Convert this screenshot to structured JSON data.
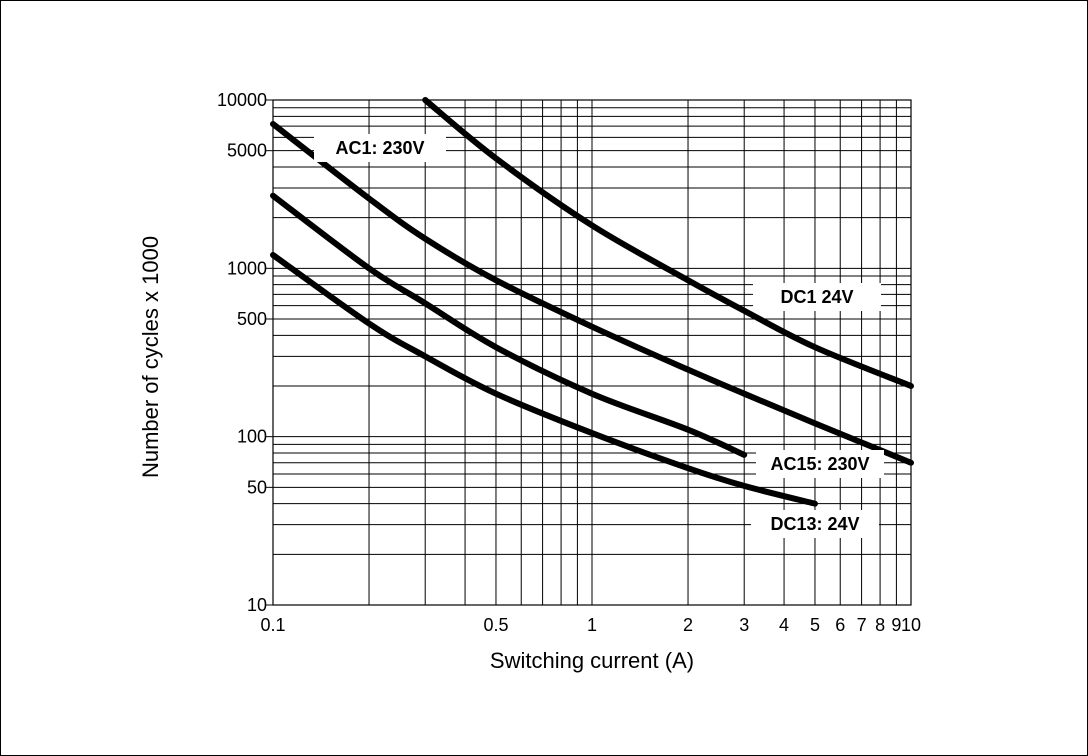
{
  "chart_data": {
    "type": "line",
    "title": "",
    "xlabel": "Switching current (A)",
    "ylabel": "Number of cycles x 1000",
    "x_scale": "log",
    "y_scale": "log",
    "xlim": [
      0.1,
      10
    ],
    "ylim": [
      10,
      10000
    ],
    "grid": true,
    "x_tick_labels": [
      {
        "value": 0.1,
        "label": "0.1"
      },
      {
        "value": 0.5,
        "label": "0.5"
      },
      {
        "value": 1,
        "label": "1"
      },
      {
        "value": 2,
        "label": "2"
      },
      {
        "value": 3,
        "label": "3"
      },
      {
        "value": 4,
        "label": "4"
      },
      {
        "value": 5,
        "label": "5"
      },
      {
        "value": 6,
        "label": "6"
      },
      {
        "value": 7,
        "label": "7"
      },
      {
        "value": 8,
        "label": "8"
      },
      {
        "value": 9,
        "label": "9"
      },
      {
        "value": 10,
        "label": "10"
      }
    ],
    "y_tick_labels": [
      {
        "value": 10,
        "label": "10"
      },
      {
        "value": 50,
        "label": "50"
      },
      {
        "value": 100,
        "label": "100"
      },
      {
        "value": 500,
        "label": "500"
      },
      {
        "value": 1000,
        "label": "1000"
      },
      {
        "value": 5000,
        "label": "5000"
      },
      {
        "value": 10000,
        "label": "10000"
      }
    ],
    "series": [
      {
        "name": "DC1 24V",
        "points": [
          [
            0.3,
            10000
          ],
          [
            0.5,
            4500
          ],
          [
            1,
            1800
          ],
          [
            2,
            850
          ],
          [
            3,
            560
          ],
          [
            5,
            340
          ],
          [
            10,
            200
          ]
        ]
      },
      {
        "name": "AC1: 230V",
        "points": [
          [
            0.1,
            7200
          ],
          [
            0.2,
            2600
          ],
          [
            0.3,
            1500
          ],
          [
            0.5,
            850
          ],
          [
            1,
            450
          ],
          [
            2,
            250
          ],
          [
            3,
            180
          ],
          [
            5,
            120
          ],
          [
            10,
            70
          ]
        ]
      },
      {
        "name": "AC15: 230V",
        "points": [
          [
            0.1,
            2700
          ],
          [
            0.2,
            1000
          ],
          [
            0.3,
            620
          ],
          [
            0.5,
            340
          ],
          [
            1,
            180
          ],
          [
            2,
            110
          ],
          [
            3,
            78
          ]
        ]
      },
      {
        "name": "DC13: 24V",
        "points": [
          [
            0.1,
            1200
          ],
          [
            0.2,
            470
          ],
          [
            0.3,
            300
          ],
          [
            0.5,
            180
          ],
          [
            1,
            105
          ],
          [
            2,
            65
          ],
          [
            3,
            51
          ],
          [
            5,
            40
          ]
        ]
      }
    ]
  }
}
